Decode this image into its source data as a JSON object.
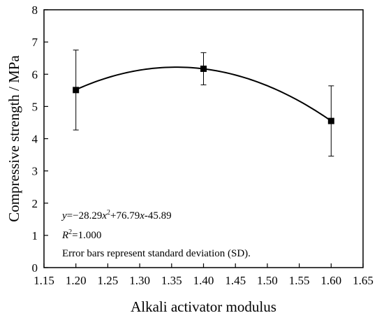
{
  "chart_data": {
    "type": "scatter",
    "xlabel": "Alkali activator modulus",
    "ylabel": "Compressive strength  / MPa",
    "xlim": [
      1.15,
      1.65
    ],
    "ylim": [
      0,
      8
    ],
    "x_ticks": [
      1.15,
      1.2,
      1.25,
      1.3,
      1.35,
      1.4,
      1.45,
      1.5,
      1.55,
      1.6,
      1.65
    ],
    "x_tick_labels": [
      "1.15",
      "1.20",
      "1.25",
      "1.30",
      "1.35",
      "1.40",
      "1.45",
      "1.50",
      "1.55",
      "1.60",
      "1.65"
    ],
    "y_ticks": [
      0,
      1,
      2,
      3,
      4,
      5,
      6,
      7,
      8
    ],
    "y_tick_labels": [
      "0",
      "1",
      "2",
      "3",
      "4",
      "5",
      "6",
      "7",
      "8"
    ],
    "grid": false,
    "series": [
      {
        "x": [
          1.2,
          1.4,
          1.6
        ],
        "y": [
          5.51,
          6.17,
          4.55
        ],
        "error": [
          1.24,
          0.5,
          1.09
        ],
        "marker": "square",
        "color": "#000000"
      }
    ],
    "fit": {
      "type": "quadratic",
      "coefficients": [
        -28.29,
        76.79,
        -45.89
      ],
      "x_range": [
        1.2,
        1.6
      ]
    },
    "annotations": {
      "equation": {
        "y": "y",
        "eq": "=−28.29",
        "x1": "x",
        "sup2": "2",
        "mid": "+76.79",
        "x2": "x",
        "tail": "-45.89"
      },
      "r2": {
        "r": "R",
        "sup2": "2",
        "value": "=1.000"
      },
      "note": "Error bars represent standard deviation (SD)."
    }
  }
}
